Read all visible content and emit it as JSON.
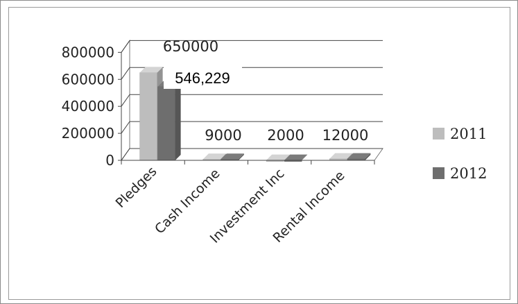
{
  "chart_data": {
    "type": "bar",
    "variant": "3d-clustered-column",
    "categories": [
      "Pledges",
      "Cash Income",
      "Investment Inc",
      "Rental Income"
    ],
    "series": [
      {
        "name": "2011",
        "values": [
          650000,
          9000,
          2000,
          12000
        ],
        "color": "#bdbdbd",
        "data_labels": [
          "650000",
          "9000",
          "2000",
          "12000"
        ]
      },
      {
        "name": "2012",
        "values": [
          546229,
          9000,
          2000,
          12000
        ],
        "color": "#6e6e6e",
        "data_labels": [
          "546,229",
          "",
          "",
          ""
        ]
      }
    ],
    "y_ticks": [
      "0",
      "200000",
      "400000",
      "600000",
      "800000"
    ],
    "ylim": [
      0,
      800000
    ],
    "grid": true,
    "legend": "right"
  }
}
